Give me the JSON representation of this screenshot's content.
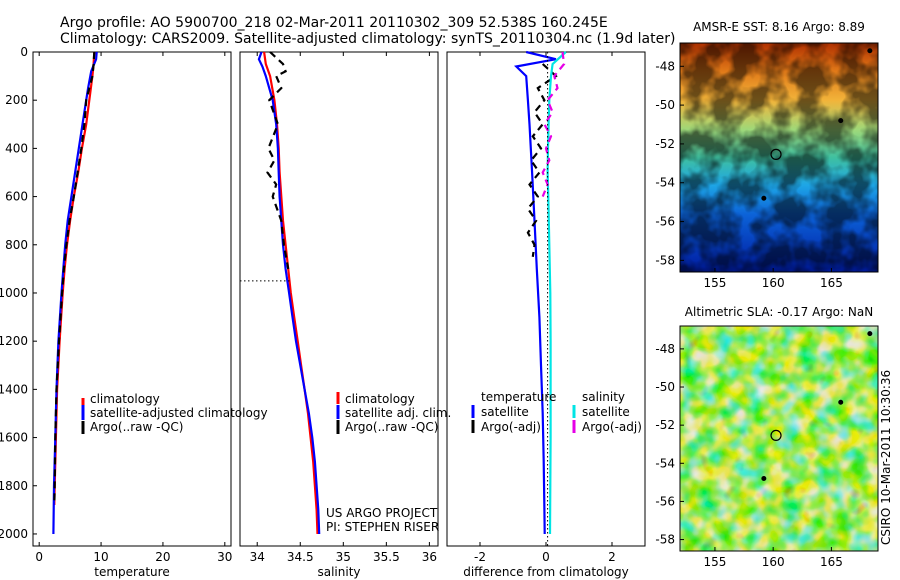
{
  "title_line1": "Argo profile: AO 5900700_218 02-Mar-2011 20110302_309 52.538S 160.245E",
  "title_line2": "Climatology: CARS2009. Satellite-adjusted climatology: synTS_20110304.nc (1.9d later)",
  "side_text": "CSIRO 10-Mar-2011 10:30:36",
  "project_line1": "US ARGO PROJECT",
  "project_line2": "PI: STEPHEN RISER",
  "colors": {
    "climatology": "#ff0000",
    "satellite": "#0000ff",
    "argo": "#000000",
    "sat_salinity": "#00e5e5",
    "argo_salinity": "#e600e6"
  },
  "chart_data": [
    {
      "type": "line",
      "name": "temperature",
      "xlabel": "temperature",
      "ylabel": "",
      "xlim": [
        -1,
        31
      ],
      "ylim": [
        2050,
        0
      ],
      "xticks": [
        0,
        10,
        20,
        30
      ],
      "yticks": [
        0,
        200,
        400,
        600,
        800,
        1000,
        1200,
        1400,
        1600,
        1800,
        2000
      ],
      "legend": [
        "climatology",
        "satellite-adjusted climatology",
        "Argo(..raw -QC)"
      ],
      "series": [
        {
          "name": "climatology",
          "color": "red",
          "depth": [
            0,
            50,
            100,
            200,
            300,
            400,
            500,
            600,
            700,
            800,
            900,
            1000,
            1200,
            1400,
            1600,
            1800,
            1880
          ],
          "values": [
            8.9,
            8.8,
            8.6,
            8.1,
            7.6,
            6.9,
            6.3,
            5.6,
            5.0,
            4.5,
            4.1,
            3.8,
            3.3,
            2.9,
            2.7,
            2.5,
            2.45
          ]
        },
        {
          "name": "satellite-adjusted climatology",
          "color": "blue",
          "depth": [
            0,
            30,
            80,
            150,
            200,
            300,
            400,
            500,
            600,
            700,
            800,
            900,
            1000,
            1200,
            1400,
            1600,
            1800,
            2000
          ],
          "values": [
            9.3,
            9.2,
            8.4,
            7.9,
            7.6,
            7.0,
            6.4,
            5.8,
            5.2,
            4.6,
            4.2,
            3.9,
            3.6,
            3.1,
            2.8,
            2.6,
            2.4,
            2.3
          ]
        },
        {
          "name": "Argo(..raw -QC)",
          "color": "black",
          "depth": [
            0,
            50,
            100,
            200,
            300,
            400,
            500,
            600,
            700,
            800,
            900,
            1000,
            1200,
            1400,
            1600,
            1800,
            1880
          ],
          "values": [
            8.9,
            8.8,
            8.6,
            7.6,
            7.3,
            6.8,
            6.2,
            5.6,
            4.9,
            4.4,
            4.0,
            3.7,
            3.2,
            2.8,
            2.6,
            2.5,
            2.45
          ]
        }
      ]
    },
    {
      "type": "line",
      "name": "salinity",
      "xlabel": "salinity",
      "ylabel": "",
      "xlim": [
        33.8,
        36.1
      ],
      "ylim": [
        2050,
        0
      ],
      "xticks": [
        34,
        34.5,
        35,
        35.5,
        36
      ],
      "yticks": [],
      "legend": [
        "climatology",
        "satellite adj. clim.",
        "Argo(..raw -QC)"
      ],
      "series": [
        {
          "name": "climatology",
          "color": "red",
          "depth": [
            0,
            50,
            100,
            200,
            300,
            400,
            500,
            600,
            700,
            800,
            900,
            1000,
            1100,
            1200,
            1300,
            1400,
            1500,
            1600,
            1700,
            1800,
            1900,
            2000
          ],
          "values": [
            34.08,
            34.1,
            34.15,
            34.2,
            34.23,
            34.25,
            34.26,
            34.28,
            34.3,
            34.33,
            34.36,
            34.39,
            34.43,
            34.47,
            34.51,
            34.55,
            34.59,
            34.62,
            34.65,
            34.67,
            34.69,
            34.7
          ]
        },
        {
          "name": "satellite adj. clim.",
          "color": "blue",
          "depth": [
            0,
            30,
            60,
            100,
            200,
            300,
            400,
            500,
            600,
            700,
            800,
            900,
            1000,
            1100,
            1200,
            1300,
            1400,
            1500,
            1600,
            1700,
            1800,
            1900,
            2000
          ],
          "values": [
            34.05,
            34.02,
            34.06,
            34.1,
            34.18,
            34.22,
            34.24,
            34.25,
            34.26,
            34.28,
            34.3,
            34.33,
            34.37,
            34.41,
            34.45,
            34.5,
            34.55,
            34.6,
            34.64,
            34.67,
            34.69,
            34.71,
            34.72
          ]
        },
        {
          "name": "Argo(..raw -QC)",
          "color": "black",
          "depth": [
            0,
            50,
            80,
            100,
            150,
            200,
            300,
            400,
            450,
            500,
            550,
            600,
            700,
            800,
            900
          ],
          "values": [
            34.15,
            34.3,
            34.33,
            34.22,
            34.28,
            34.14,
            34.24,
            34.13,
            34.2,
            34.12,
            34.22,
            34.18,
            34.28,
            34.31,
            34.36
          ]
        },
        {
          "name": "argo_end_dotted",
          "color": "black",
          "depth": [
            950,
            950
          ],
          "values": [
            33.8,
            34.38
          ]
        }
      ]
    },
    {
      "type": "line",
      "name": "difference",
      "xlabel": "difference from climatology",
      "ylabel": "",
      "xlim": [
        -3,
        3
      ],
      "ylim": [
        2050,
        0
      ],
      "xticks": [
        -2,
        0,
        2
      ],
      "yticks": [],
      "legend": [
        "temperature",
        "satellite",
        "Argo(-adj)",
        "salinity",
        "satellite",
        "Argo(-adj)"
      ],
      "series": [
        {
          "name": "temperature satellite",
          "color": "blue",
          "depth": [
            0,
            30,
            60,
            100,
            200,
            300,
            500,
            700,
            900,
            1100,
            1300,
            1500,
            1700,
            1900,
            2000
          ],
          "values": [
            -0.6,
            0.3,
            -0.9,
            -0.6,
            -0.55,
            -0.5,
            -0.42,
            -0.35,
            -0.28,
            -0.2,
            -0.15,
            -0.1,
            -0.07,
            -0.05,
            -0.04
          ]
        },
        {
          "name": "temperature Argo(-adj)",
          "color": "black",
          "depth": [
            50,
            100,
            150,
            200,
            250,
            300,
            350,
            400,
            450,
            500,
            550,
            600,
            650,
            700,
            750,
            800,
            850
          ],
          "values": [
            -0.1,
            0.3,
            -0.25,
            -0.05,
            -0.35,
            -0.1,
            -0.4,
            -0.15,
            -0.45,
            -0.2,
            -0.5,
            -0.25,
            -0.55,
            -0.3,
            -0.55,
            -0.35,
            -0.4
          ]
        },
        {
          "name": "salinity satellite",
          "color": "cyan",
          "depth": [
            0,
            50,
            100,
            200,
            300,
            400,
            500,
            600,
            800,
            1000,
            1200,
            1400,
            1600,
            1800,
            2000
          ],
          "values": [
            0.6,
            0.2,
            0.15,
            0.1,
            0.08,
            0.06,
            0.05,
            0.07,
            0.1,
            0.13,
            0.14,
            0.14,
            0.14,
            0.13,
            0.12
          ]
        },
        {
          "name": "salinity Argo(-adj)",
          "color": "magenta",
          "depth": [
            0,
            50,
            100,
            150,
            200,
            250,
            300,
            350,
            400,
            450,
            500,
            550,
            600
          ],
          "values": [
            0.5,
            0.55,
            0.25,
            0.35,
            0.05,
            0.2,
            -0.05,
            0.15,
            0.0,
            0.1,
            -0.1,
            0.05,
            -0.1
          ]
        },
        {
          "name": "zero line",
          "color": "black",
          "depth": [
            0,
            2050
          ],
          "values": [
            0.05,
            0.05
          ]
        }
      ]
    },
    {
      "type": "heatmap",
      "name": "AMSR-E SST",
      "title": "AMSR-E SST: 8.16 Argo: 8.89",
      "xlim": [
        152,
        169
      ],
      "ylim": [
        -58.6,
        -46.8
      ],
      "xticks": [
        155,
        160,
        165
      ],
      "yticks": [
        -48,
        -50,
        -52,
        -54,
        -56,
        -58
      ],
      "marker": {
        "lon": 160.245,
        "lat": -52.538
      },
      "track": [
        [
          168.3,
          -47.2
        ],
        [
          165.8,
          -50.8
        ],
        [
          159.2,
          -54.8
        ]
      ]
    },
    {
      "type": "heatmap",
      "name": "Altimetric SLA",
      "title": "Altimetric SLA: -0.17 Argo: NaN",
      "xlim": [
        152,
        169
      ],
      "ylim": [
        -58.6,
        -46.8
      ],
      "xticks": [
        155,
        160,
        165
      ],
      "yticks": [
        -48,
        -50,
        -52,
        -54,
        -56,
        -58
      ],
      "marker": {
        "lon": 160.245,
        "lat": -52.538
      },
      "track": [
        [
          168.3,
          -47.2
        ],
        [
          165.8,
          -50.8
        ],
        [
          159.2,
          -54.8
        ]
      ]
    }
  ]
}
